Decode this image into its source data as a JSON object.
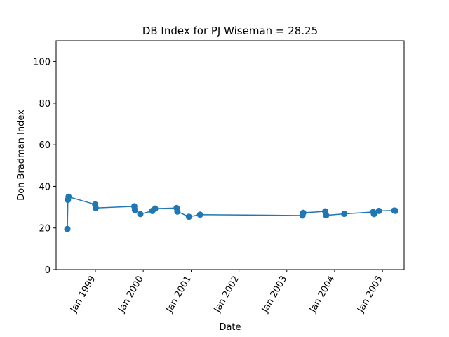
{
  "chart_data": {
    "type": "line",
    "title": "DB Index for PJ Wiseman = 28.25",
    "xlabel": "Date",
    "ylabel": "Don Bradman Index",
    "xlim": [
      "1998-03-07",
      "2005-06-15"
    ],
    "ylim": [
      0,
      110
    ],
    "xticks": [
      {
        "date": "1999-01-01",
        "label": "Jan 1999"
      },
      {
        "date": "2000-01-01",
        "label": "Jan 2000"
      },
      {
        "date": "2001-01-01",
        "label": "Jan 2001"
      },
      {
        "date": "2002-01-01",
        "label": "Jan 2002"
      },
      {
        "date": "2003-01-01",
        "label": "Jan 2003"
      },
      {
        "date": "2004-01-01",
        "label": "Jan 2004"
      },
      {
        "date": "2005-01-01",
        "label": "Jan 2005"
      }
    ],
    "yticks": [
      0,
      20,
      40,
      60,
      80,
      100
    ],
    "grid": false,
    "color": "#1f77b4",
    "series": [
      {
        "points": [
          {
            "x": "1998-06-01",
            "y": 19.5
          },
          {
            "x": "1998-06-05",
            "y": 33.5
          },
          {
            "x": "1998-06-10",
            "y": 35.0
          },
          {
            "x": "1998-12-30",
            "y": 31.3
          },
          {
            "x": "1999-01-03",
            "y": 29.6
          },
          {
            "x": "1999-10-25",
            "y": 30.4
          },
          {
            "x": "1999-10-30",
            "y": 28.6
          },
          {
            "x": "1999-12-10",
            "y": 26.7
          },
          {
            "x": "2000-03-10",
            "y": 28.2
          },
          {
            "x": "2000-04-01",
            "y": 29.3
          },
          {
            "x": "2000-09-12",
            "y": 29.6
          },
          {
            "x": "2000-09-18",
            "y": 27.9
          },
          {
            "x": "2000-12-15",
            "y": 25.4
          },
          {
            "x": "2001-03-10",
            "y": 26.4
          },
          {
            "x": "2003-05-01",
            "y": 26.0
          },
          {
            "x": "2003-05-07",
            "y": 27.3
          },
          {
            "x": "2003-10-22",
            "y": 28.0
          },
          {
            "x": "2003-10-29",
            "y": 26.1
          },
          {
            "x": "2004-03-15",
            "y": 26.8
          },
          {
            "x": "2004-10-22",
            "y": 27.7
          },
          {
            "x": "2004-10-28",
            "y": 26.7
          },
          {
            "x": "2004-12-05",
            "y": 28.2
          },
          {
            "x": "2005-04-01",
            "y": 28.4
          },
          {
            "x": "2005-04-10",
            "y": 28.25
          }
        ]
      }
    ]
  }
}
